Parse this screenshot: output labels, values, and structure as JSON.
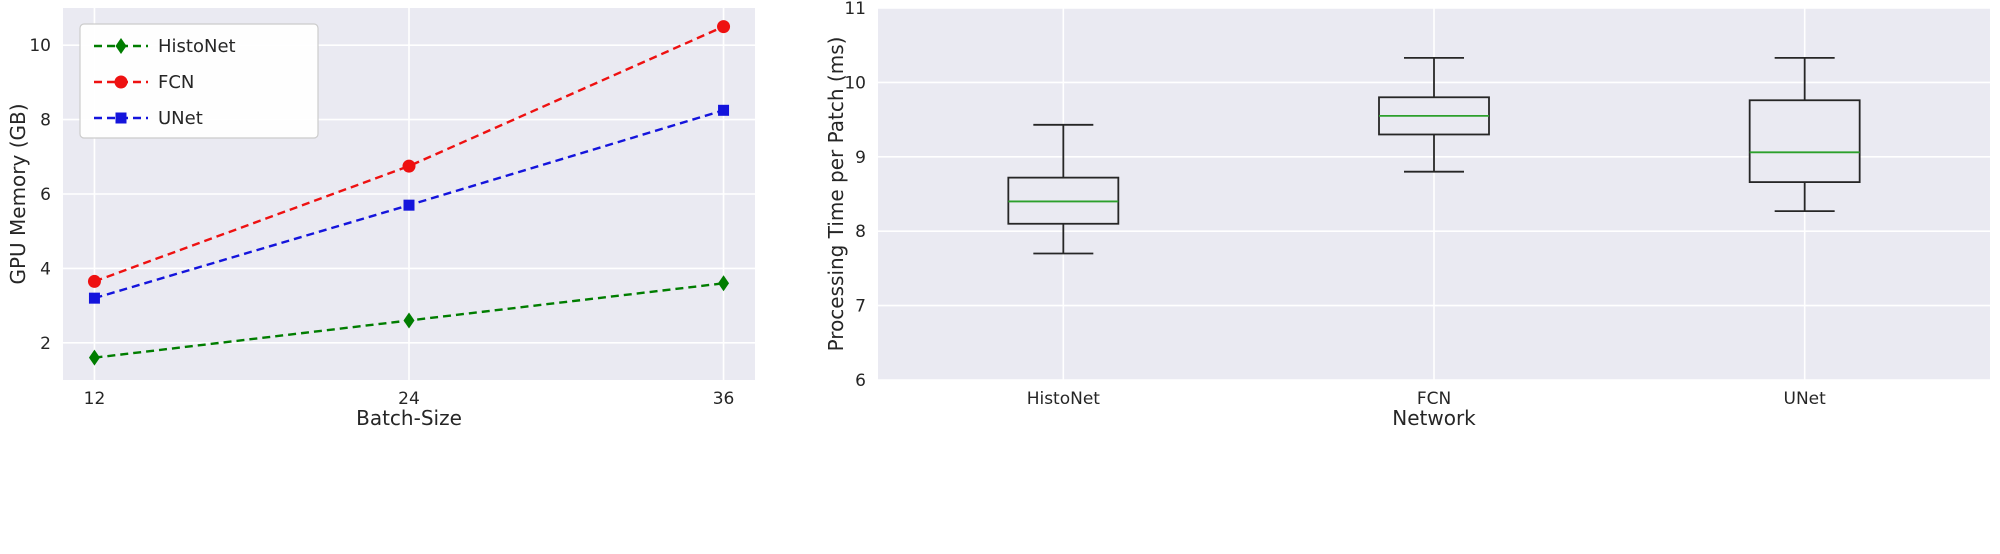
{
  "figure": {
    "background": "#ffffff",
    "panel_color": "#eaeaf2",
    "grid_color": "#ffffff",
    "text_color": "#262626"
  },
  "chart_data": [
    {
      "type": "line",
      "title": "",
      "xlabel": "Batch-Size",
      "ylabel": "GPU Memory (GB)",
      "x": [
        12,
        24,
        36
      ],
      "xticks": [
        12,
        24,
        36
      ],
      "yticks": [
        2,
        4,
        6,
        8,
        10
      ],
      "xlim": [
        10.8,
        37.2
      ],
      "ylim": [
        1.0,
        11.0
      ],
      "grid": true,
      "legend_position": "upper-left",
      "series": [
        {
          "name": "HistoNet",
          "values": [
            1.6,
            2.6,
            3.6
          ],
          "color": "#007d00",
          "marker": "diamond",
          "linestyle": "dashed"
        },
        {
          "name": "FCN",
          "values": [
            3.65,
            6.75,
            10.5
          ],
          "color": "#ee1111",
          "marker": "circle",
          "linestyle": "dashed"
        },
        {
          "name": "UNet",
          "values": [
            3.2,
            5.7,
            8.25
          ],
          "color": "#1414dc",
          "marker": "square",
          "linestyle": "dashed"
        }
      ]
    },
    {
      "type": "boxplot",
      "title": "",
      "xlabel": "Network",
      "ylabel": "Processing Time per Patch (ms)",
      "categories": [
        "HistoNet",
        "FCN",
        "UNet"
      ],
      "yticks": [
        6,
        7,
        8,
        9,
        10,
        11
      ],
      "ylim": [
        6,
        11
      ],
      "grid": true,
      "box_color": "#262626",
      "median_color": "#2ca02c",
      "boxes": [
        {
          "label": "HistoNet",
          "whisker_low": 7.7,
          "q1": 8.1,
          "median": 8.4,
          "q3": 8.72,
          "whisker_high": 9.43
        },
        {
          "label": "FCN",
          "whisker_low": 8.8,
          "q1": 9.3,
          "median": 9.55,
          "q3": 9.8,
          "whisker_high": 10.33
        },
        {
          "label": "UNet",
          "whisker_low": 8.27,
          "q1": 8.66,
          "median": 9.06,
          "q3": 9.76,
          "whisker_high": 10.33
        }
      ]
    }
  ]
}
